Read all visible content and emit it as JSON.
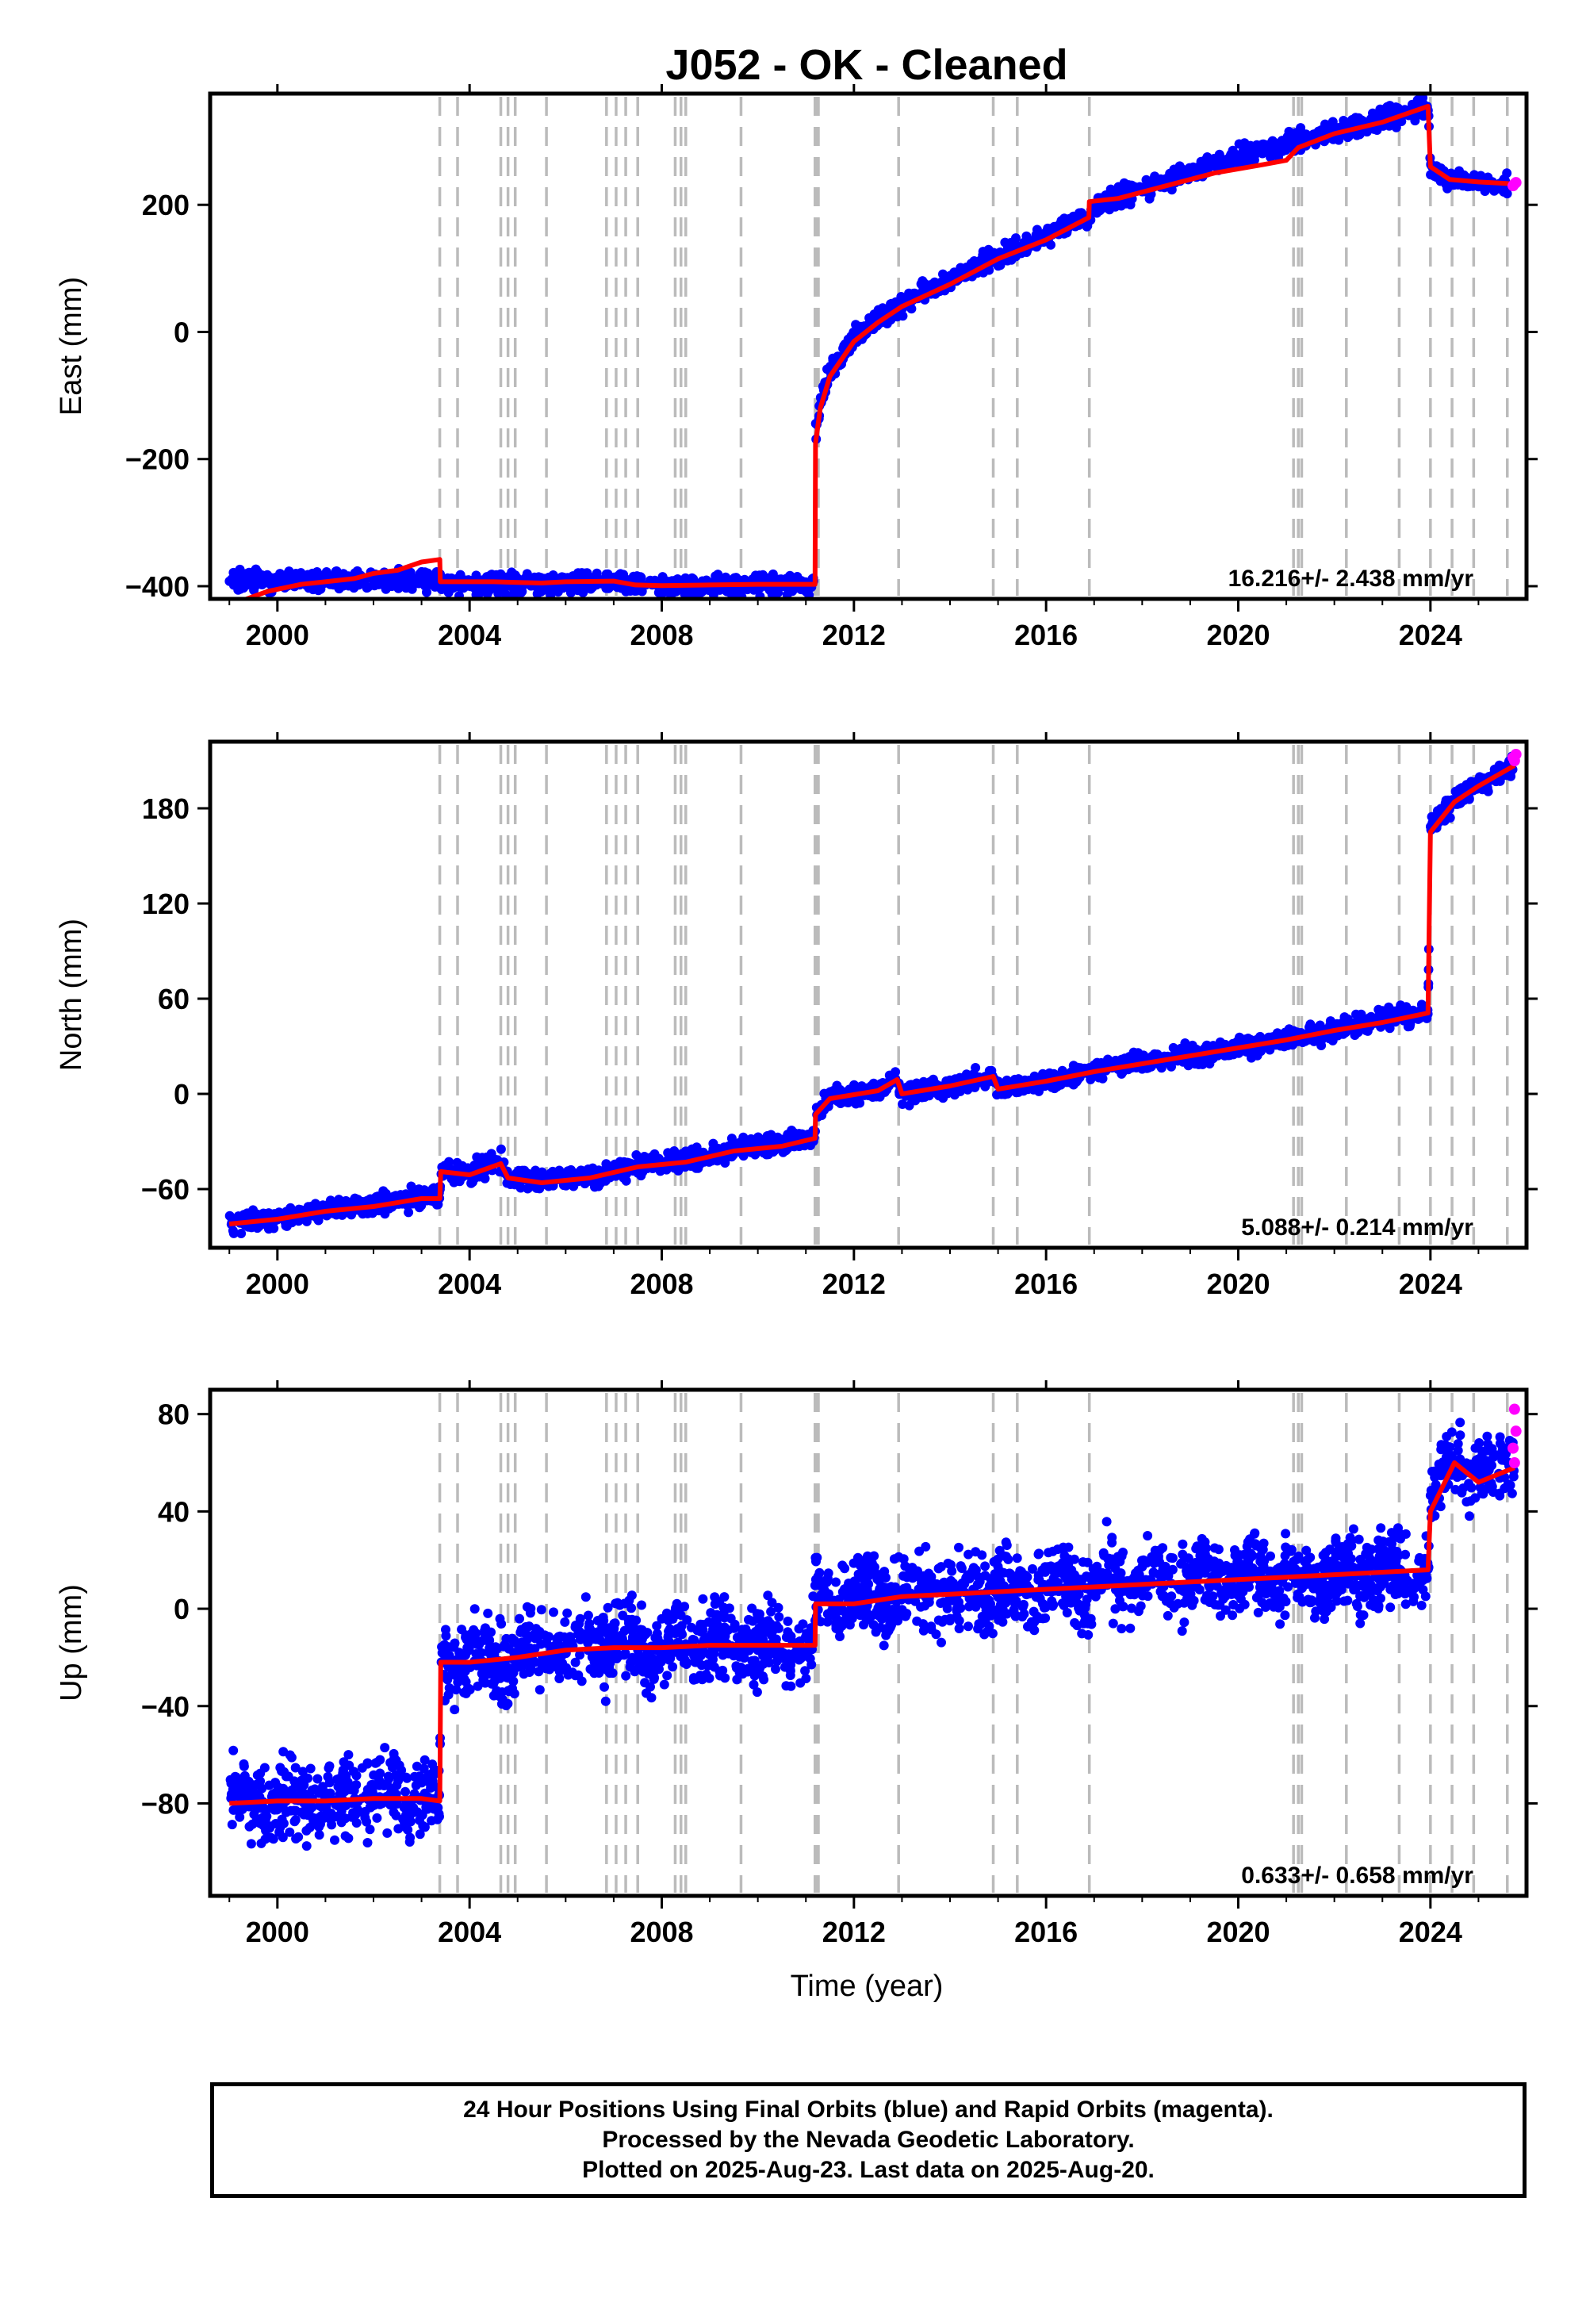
{
  "chart_data": {
    "type": "scatter",
    "title": "J052  - OK - Cleaned",
    "xlabel": "Time (year)",
    "xlim": [
      1998.6,
      2026.0
    ],
    "xticks": [
      2000,
      2004,
      2008,
      2012,
      2016,
      2020,
      2024
    ],
    "legend_text": "24 Hour Positions Using Final Orbits (blue) and Rapid Orbits (magenta).",
    "series_colors": {
      "final": "#0000ff",
      "rapid": "#ff00ff",
      "model": "#ff0000",
      "events": "#bbbbbb"
    },
    "event_lines": [
      2003.38,
      2003.75,
      2004.65,
      2004.8,
      2004.95,
      2005.6,
      2006.85,
      2007.05,
      2007.25,
      2007.5,
      2008.28,
      2008.4,
      2008.5,
      2009.65,
      2011.19,
      2011.22,
      2011.26,
      2012.93,
      2014.9,
      2015.4,
      2016.9,
      2021.15,
      2021.25,
      2021.32,
      2022.25,
      2023.35,
      2024.0,
      2024.45,
      2024.9,
      2025.6
    ],
    "panels": [
      {
        "ylabel": "East (mm)",
        "ylim": [
          -420,
          375
        ],
        "yticks": [
          -400,
          -200,
          0,
          200
        ],
        "rate_text": "16.216+/- 2.438 mm/yr",
        "final_track": [
          [
            1999.0,
            -390
          ],
          [
            2000.0,
            -392
          ],
          [
            2001.0,
            -390
          ],
          [
            2002.0,
            -391
          ],
          [
            2003.0,
            -392
          ],
          [
            2003.37,
            -392
          ],
          [
            2003.4,
            -395
          ],
          [
            2004.0,
            -395
          ],
          [
            2005.0,
            -396
          ],
          [
            2006.0,
            -396
          ],
          [
            2007.0,
            -393
          ],
          [
            2008.0,
            -398
          ],
          [
            2008.5,
            -401
          ],
          [
            2009.0,
            -400
          ],
          [
            2010.0,
            -398
          ],
          [
            2011.0,
            -396
          ],
          [
            2011.19,
            -396
          ],
          [
            2011.2,
            -160
          ],
          [
            2011.3,
            -110
          ],
          [
            2011.5,
            -60
          ],
          [
            2012.0,
            -10
          ],
          [
            2012.5,
            20
          ],
          [
            2013.0,
            45
          ],
          [
            2014.0,
            80
          ],
          [
            2015.0,
            120
          ],
          [
            2016.0,
            150
          ],
          [
            2016.9,
            185
          ],
          [
            2017.0,
            200
          ],
          [
            2018.0,
            225
          ],
          [
            2019.0,
            250
          ],
          [
            2020.0,
            275
          ],
          [
            2021.0,
            295
          ],
          [
            2022.0,
            315
          ],
          [
            2023.0,
            335
          ],
          [
            2023.95,
            355
          ],
          [
            2024.0,
            260
          ],
          [
            2024.3,
            240
          ],
          [
            2025.0,
            237
          ],
          [
            2025.6,
            230
          ]
        ],
        "model": [
          [
            1999.0,
            -430
          ],
          [
            1999.8,
            -408
          ],
          [
            2000.5,
            -397
          ],
          [
            2001.0,
            -393
          ],
          [
            2001.6,
            -388
          ],
          [
            2002.0,
            -380
          ],
          [
            2002.5,
            -375
          ],
          [
            2003.0,
            -362
          ],
          [
            2003.38,
            -358
          ],
          [
            2003.39,
            -393
          ],
          [
            2004.5,
            -393
          ],
          [
            2005.0,
            -394
          ],
          [
            2005.5,
            -395
          ],
          [
            2006.0,
            -393
          ],
          [
            2007.0,
            -392
          ],
          [
            2007.45,
            -398
          ],
          [
            2008.0,
            -399
          ],
          [
            2009.0,
            -398
          ],
          [
            2010.0,
            -397
          ],
          [
            2011.19,
            -397
          ],
          [
            2011.2,
            -175
          ],
          [
            2011.3,
            -120
          ],
          [
            2011.5,
            -70
          ],
          [
            2012.0,
            -15
          ],
          [
            2012.5,
            15
          ],
          [
            2013.0,
            40
          ],
          [
            2014.0,
            75
          ],
          [
            2015.0,
            115
          ],
          [
            2016.0,
            145
          ],
          [
            2016.89,
            180
          ],
          [
            2016.9,
            205
          ],
          [
            2017.5,
            210
          ],
          [
            2018.5,
            230
          ],
          [
            2019.5,
            250
          ],
          [
            2020.5,
            263
          ],
          [
            2021.0,
            270
          ],
          [
            2021.25,
            290
          ],
          [
            2022.0,
            312
          ],
          [
            2023.0,
            330
          ],
          [
            2023.95,
            355
          ],
          [
            2024.0,
            260
          ],
          [
            2024.4,
            240
          ],
          [
            2025.0,
            236
          ],
          [
            2025.75,
            233
          ]
        ],
        "rapid_points": [
          [
            2025.75,
            233
          ],
          [
            2025.78,
            235
          ],
          [
            2025.72,
            230
          ]
        ]
      },
      {
        "ylabel": "North (mm)",
        "ylim": [
          -97,
          222
        ],
        "yticks": [
          -60,
          0,
          60,
          120,
          180
        ],
        "rate_text": "5.088+/- 0.214 mm/yr",
        "final_track": [
          [
            1999.0,
            -82
          ],
          [
            2000.0,
            -78
          ],
          [
            2001.0,
            -73
          ],
          [
            2002.0,
            -70
          ],
          [
            2003.0,
            -65
          ],
          [
            2003.38,
            -65
          ],
          [
            2003.4,
            -48
          ],
          [
            2004.0,
            -50
          ],
          [
            2004.65,
            -42
          ],
          [
            2004.8,
            -52
          ],
          [
            2005.5,
            -55
          ],
          [
            2006.5,
            -52
          ],
          [
            2007.5,
            -45
          ],
          [
            2008.5,
            -42
          ],
          [
            2009.5,
            -35
          ],
          [
            2010.5,
            -32
          ],
          [
            2011.19,
            -27
          ],
          [
            2011.2,
            -12
          ],
          [
            2011.5,
            -2
          ],
          [
            2012.5,
            2
          ],
          [
            2012.9,
            10
          ],
          [
            2013.0,
            0
          ],
          [
            2014.0,
            5
          ],
          [
            2014.9,
            12
          ],
          [
            2015.0,
            3
          ],
          [
            2016.0,
            8
          ],
          [
            2017.0,
            15
          ],
          [
            2018.0,
            20
          ],
          [
            2019.0,
            24
          ],
          [
            2020.0,
            29
          ],
          [
            2021.0,
            35
          ],
          [
            2022.0,
            40
          ],
          [
            2023.0,
            46
          ],
          [
            2023.95,
            52
          ],
          [
            2024.0,
            168
          ],
          [
            2024.5,
            185
          ],
          [
            2025.0,
            195
          ],
          [
            2025.75,
            208
          ]
        ],
        "model": [
          [
            1999.0,
            -82
          ],
          [
            2000.0,
            -79
          ],
          [
            2001.0,
            -74
          ],
          [
            2002.0,
            -71
          ],
          [
            2003.0,
            -66
          ],
          [
            2003.38,
            -66
          ],
          [
            2003.4,
            -49
          ],
          [
            2004.0,
            -51
          ],
          [
            2004.65,
            -44
          ],
          [
            2004.8,
            -53
          ],
          [
            2005.5,
            -56
          ],
          [
            2006.5,
            -53
          ],
          [
            2007.5,
            -46
          ],
          [
            2008.5,
            -43
          ],
          [
            2009.5,
            -36
          ],
          [
            2010.5,
            -33
          ],
          [
            2011.19,
            -28
          ],
          [
            2011.2,
            -13
          ],
          [
            2011.5,
            -3
          ],
          [
            2012.5,
            2
          ],
          [
            2012.9,
            9
          ],
          [
            2013.0,
            0
          ],
          [
            2014.0,
            5
          ],
          [
            2014.9,
            11
          ],
          [
            2015.0,
            3
          ],
          [
            2016.0,
            8
          ],
          [
            2017.0,
            14
          ],
          [
            2018.0,
            19
          ],
          [
            2019.0,
            24
          ],
          [
            2020.0,
            29
          ],
          [
            2021.0,
            34
          ],
          [
            2022.0,
            40
          ],
          [
            2023.0,
            45
          ],
          [
            2023.95,
            51
          ],
          [
            2024.0,
            165
          ],
          [
            2024.5,
            184
          ],
          [
            2025.0,
            194
          ],
          [
            2025.75,
            207
          ]
        ],
        "rapid_points": [
          [
            2025.75,
            210
          ],
          [
            2025.78,
            214
          ],
          [
            2025.72,
            212
          ]
        ]
      },
      {
        "ylabel": "Up (mm)",
        "ylim": [
          -118,
          90
        ],
        "yticks": [
          -80,
          -40,
          0,
          40,
          80
        ],
        "rate_text": "0.633+/- 0.658 mm/yr",
        "final_track": [
          [
            1999.0,
            -80
          ],
          [
            2000.0,
            -78
          ],
          [
            2001.0,
            -80
          ],
          [
            2002.0,
            -77
          ],
          [
            2003.0,
            -78
          ],
          [
            2003.38,
            -80
          ],
          [
            2003.4,
            -22
          ],
          [
            2004.0,
            -23
          ],
          [
            2005.0,
            -20
          ],
          [
            2006.0,
            -15
          ],
          [
            2007.0,
            -15
          ],
          [
            2008.0,
            -17
          ],
          [
            2009.0,
            -13
          ],
          [
            2010.0,
            -15
          ],
          [
            2011.19,
            -14
          ],
          [
            2011.2,
            5
          ],
          [
            2012.0,
            3
          ],
          [
            2013.0,
            7
          ],
          [
            2014.0,
            8
          ],
          [
            2015.0,
            8
          ],
          [
            2016.0,
            9
          ],
          [
            2017.0,
            10
          ],
          [
            2018.0,
            11
          ],
          [
            2019.0,
            12
          ],
          [
            2020.0,
            12
          ],
          [
            2021.0,
            13
          ],
          [
            2022.0,
            14
          ],
          [
            2023.0,
            15
          ],
          [
            2023.95,
            18
          ],
          [
            2024.0,
            42
          ],
          [
            2024.5,
            62
          ],
          [
            2025.0,
            55
          ],
          [
            2025.75,
            60
          ]
        ],
        "model": [
          [
            1999.0,
            -80
          ],
          [
            2000.0,
            -79
          ],
          [
            2001.0,
            -79
          ],
          [
            2002.0,
            -78
          ],
          [
            2003.0,
            -78
          ],
          [
            2003.38,
            -79
          ],
          [
            2003.4,
            -22
          ],
          [
            2004.0,
            -22
          ],
          [
            2005.0,
            -20
          ],
          [
            2006.0,
            -17
          ],
          [
            2007.0,
            -16
          ],
          [
            2008.0,
            -16
          ],
          [
            2009.0,
            -15
          ],
          [
            2010.0,
            -15
          ],
          [
            2011.19,
            -15
          ],
          [
            2011.2,
            2
          ],
          [
            2012.0,
            2
          ],
          [
            2013.0,
            5
          ],
          [
            2014.0,
            6
          ],
          [
            2015.0,
            7
          ],
          [
            2016.0,
            8
          ],
          [
            2017.0,
            9
          ],
          [
            2018.0,
            10
          ],
          [
            2019.0,
            11
          ],
          [
            2020.0,
            12
          ],
          [
            2021.0,
            13
          ],
          [
            2022.0,
            14
          ],
          [
            2023.0,
            15
          ],
          [
            2023.95,
            16
          ],
          [
            2024.0,
            40
          ],
          [
            2024.5,
            60
          ],
          [
            2025.0,
            52
          ],
          [
            2025.75,
            58
          ]
        ],
        "rapid_points": [
          [
            2025.75,
            82
          ],
          [
            2025.78,
            73
          ],
          [
            2025.72,
            66
          ],
          [
            2025.75,
            60
          ]
        ]
      }
    ]
  },
  "caption": {
    "line1": "24 Hour Positions Using Final Orbits (blue) and Rapid Orbits (magenta).",
    "line2": "Processed by the Nevada Geodetic Laboratory.",
    "line3": "Plotted on 2025-Aug-23. Last data on 2025-Aug-20."
  }
}
